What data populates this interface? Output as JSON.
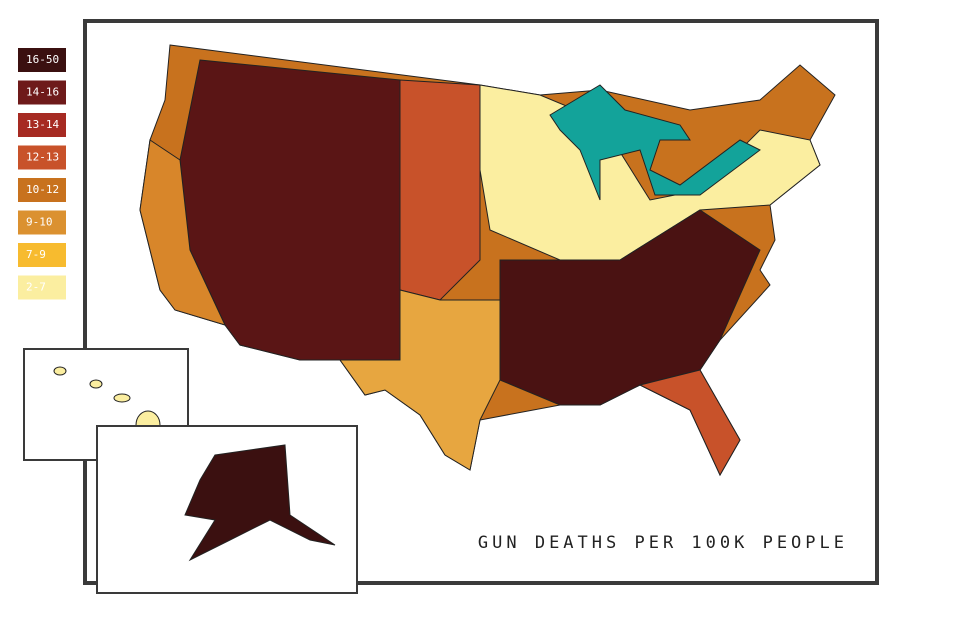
{
  "title": "GUN DEATHS PER 100K PEOPLE",
  "legend": {
    "items": [
      {
        "label": "16-50",
        "color": "#3b1010"
      },
      {
        "label": "14-16",
        "color": "#6e1a1a"
      },
      {
        "label": "13-14",
        "color": "#a62a22"
      },
      {
        "label": "12-13",
        "color": "#c8522a"
      },
      {
        "label": "10-12",
        "color": "#c8721e"
      },
      {
        "label": "9-10",
        "color": "#db9130"
      },
      {
        "label": "7-9",
        "color": "#f7bb2f"
      },
      {
        "label": "2-7",
        "color": "#fbeea0"
      }
    ]
  }
}
